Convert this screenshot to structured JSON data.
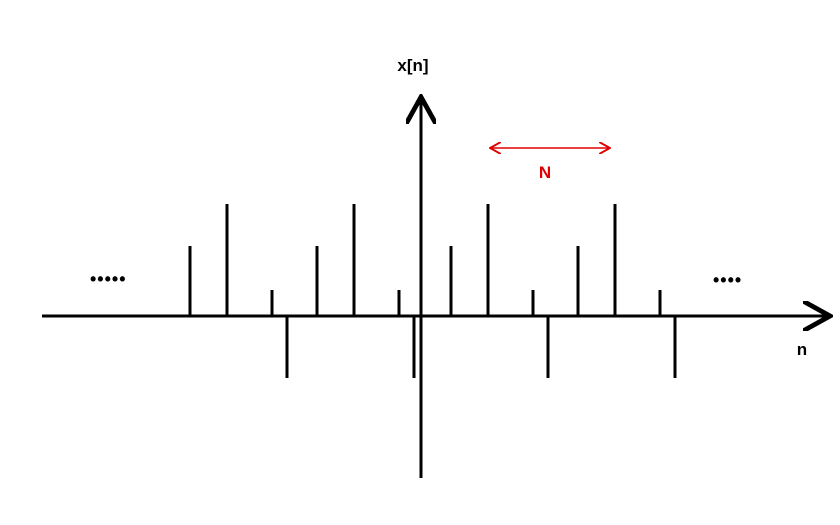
{
  "labels": {
    "y_axis": "x[n]",
    "x_axis": "n",
    "period": "N"
  },
  "ellipsis": {
    "left": "•••••",
    "right": "••••"
  },
  "colors": {
    "axis": "#000000",
    "stem": "#000000",
    "period_marker": "#e00000"
  }
}
